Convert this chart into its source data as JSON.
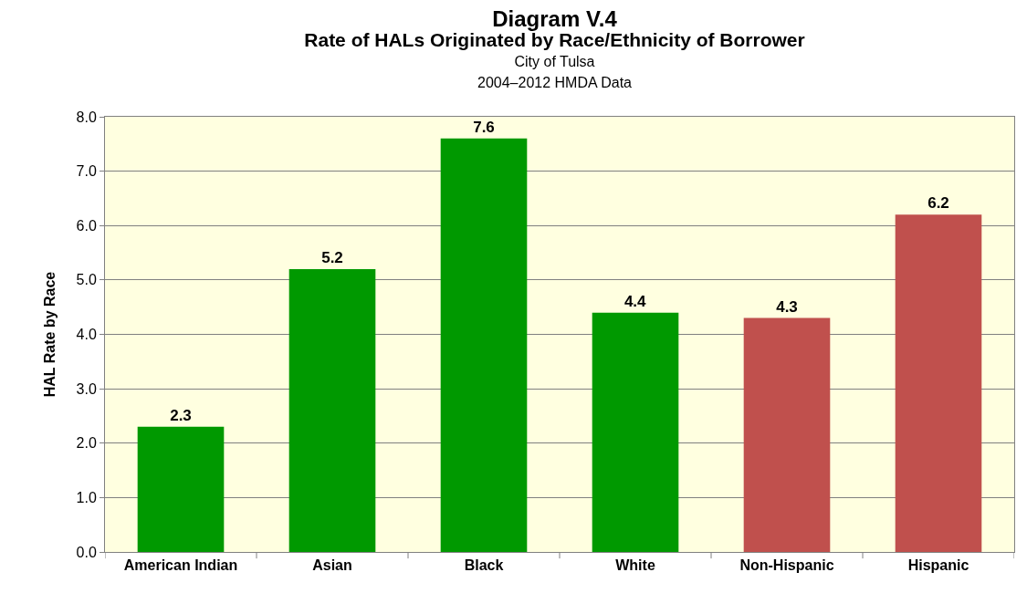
{
  "chart_data": {
    "type": "bar",
    "title": "Diagram V.4",
    "subtitle": "Rate of HALs Originated by Race/Ethnicity of Borrower\nCity of Tulsa\n2004–2012 HMDA Data",
    "ylabel": "HAL Rate by Race",
    "categories": [
      "American Indian",
      "Asian",
      "Black",
      "White",
      "Non-Hispanic",
      "Hispanic"
    ],
    "values": [
      2.3,
      5.2,
      7.6,
      4.4,
      4.3,
      6.2
    ],
    "colors": [
      "#009900",
      "#009900",
      "#009900",
      "#009900",
      "#c0504d",
      "#c0504d"
    ],
    "ylim": [
      0,
      8
    ],
    "yticks": [
      {
        "value": 0,
        "label": "0.0"
      },
      {
        "value": 1,
        "label": "1.0"
      },
      {
        "value": 2,
        "label": "2.0"
      },
      {
        "value": 3,
        "label": "3.0"
      },
      {
        "value": 4,
        "label": "4.0"
      },
      {
        "value": 5,
        "label": "5.0"
      },
      {
        "value": 6,
        "label": "6.0"
      },
      {
        "value": 7,
        "label": "7.0"
      },
      {
        "value": 8,
        "label": "8.0"
      }
    ],
    "grid": "y",
    "data_labels": true,
    "legend": false
  }
}
